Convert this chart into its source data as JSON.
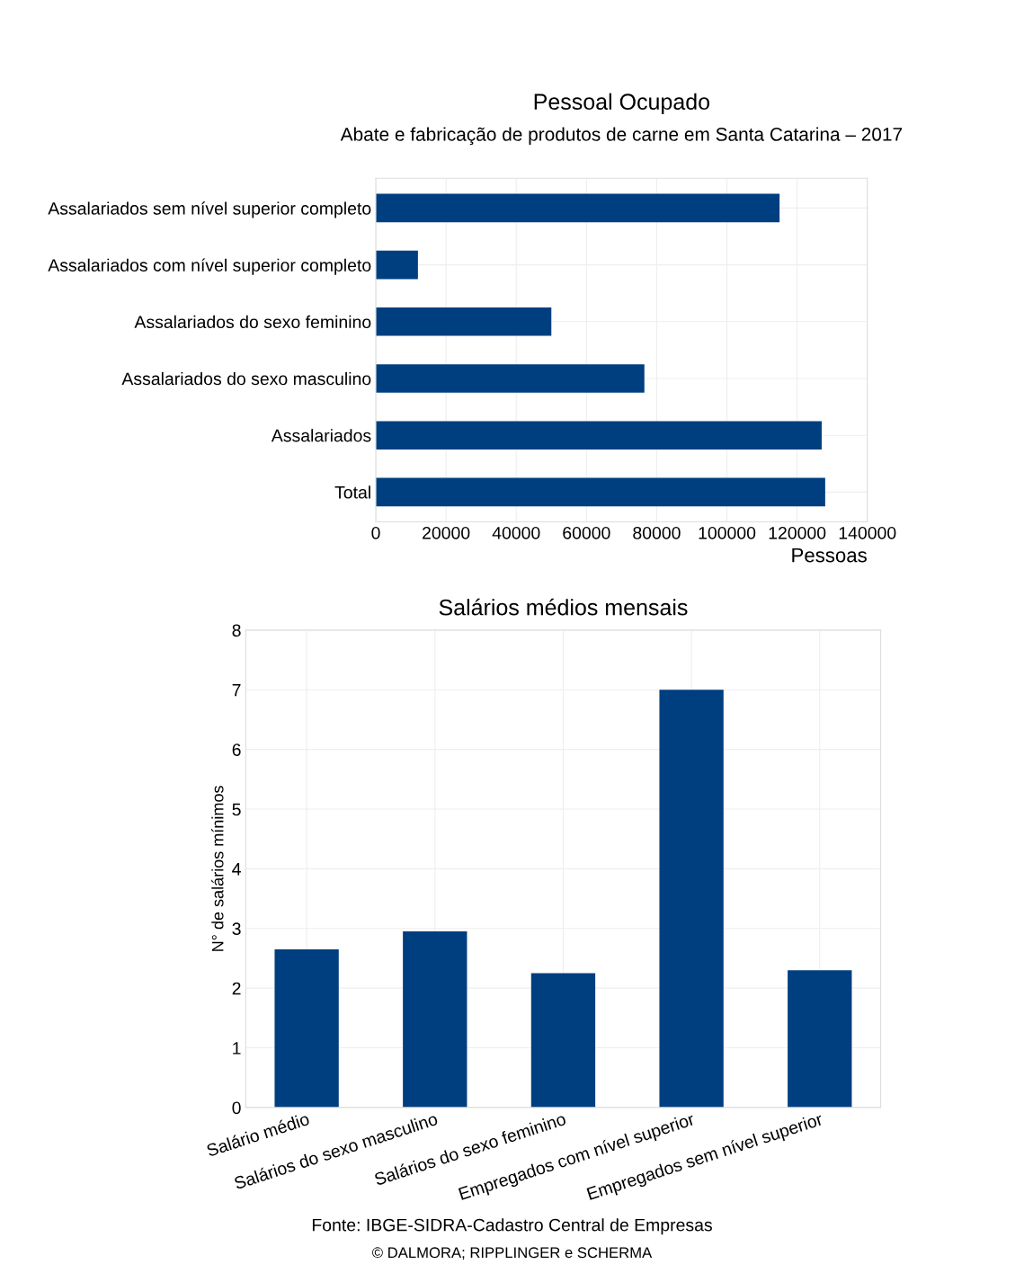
{
  "chart_data": [
    {
      "type": "bar",
      "orientation": "horizontal",
      "title": "Pessoal Ocupado",
      "subtitle": "Abate e fabricação de produtos de carne em Santa Catarina – 2017",
      "xlabel": "Pessoas",
      "categories": [
        "Assalariados sem nível superior completo",
        "Assalariados com nível superior completo",
        "Assalariados do sexo feminino",
        "Assalariados do sexo masculino",
        "Assalariados",
        "Total"
      ],
      "values": [
        115000,
        12000,
        50000,
        76500,
        127000,
        128000
      ],
      "color": "#003f7f",
      "xlim": [
        0,
        140000
      ],
      "xticks": [
        0,
        20000,
        40000,
        60000,
        80000,
        100000,
        120000,
        140000
      ],
      "grid": true
    },
    {
      "type": "bar",
      "title": "Salários médios mensais",
      "ylabel": "N° de salários mínimos",
      "categories": [
        "Salário médio",
        "Salários do sexo masculino",
        "Salários do sexo feminino",
        "Empregados com nível superior",
        "Empregados sem nível superior"
      ],
      "values": [
        2.65,
        2.95,
        2.25,
        7.0,
        2.3
      ],
      "color": "#003f7f",
      "ylim": [
        0,
        8
      ],
      "yticks": [
        0,
        1,
        2,
        3,
        4,
        5,
        6,
        7,
        8
      ],
      "grid": true,
      "annotations": [
        "Fonte: IBGE-SIDRA-Cadastro Central de Empresas",
        "© DALMORA; RIPPLINGER e SCHERMA"
      ]
    }
  ]
}
